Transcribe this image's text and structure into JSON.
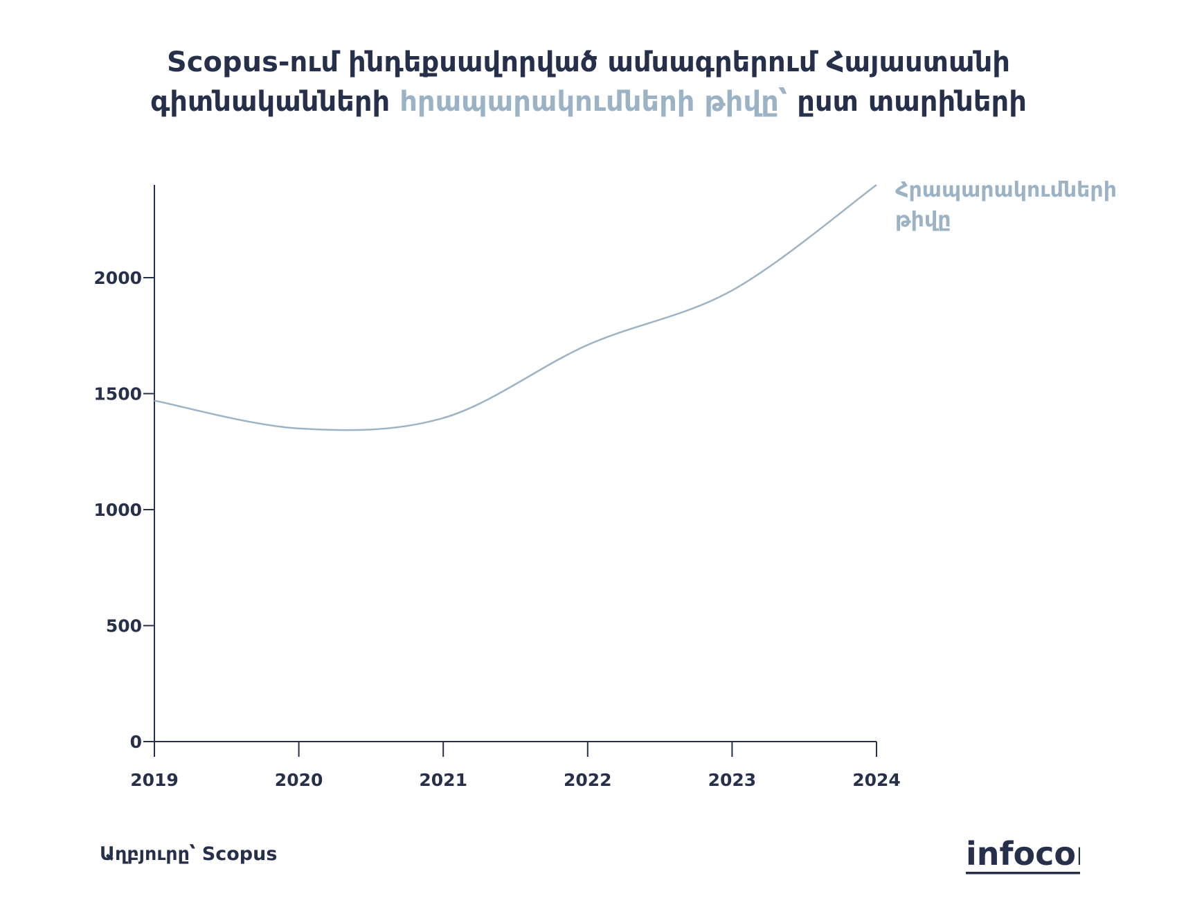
{
  "title": {
    "part1": "Scopus-ում ինդեքսավորված ամսագրերում Հայաստանի",
    "part2": "գիտնականների ",
    "highlight": "հրապարակումների թիվը՝",
    "part3": " ըստ տարիների"
  },
  "source": "Աղբյուրը՝ Scopus",
  "brand": "infocom",
  "colors": {
    "text": "#27304a",
    "series": "#9bb3c5"
  },
  "chart_data": {
    "type": "line",
    "x": [
      2019,
      2020,
      2021,
      2022,
      2023,
      2024
    ],
    "series": [
      {
        "name": "Հրապարակումների թիվը",
        "label_lines": [
          "Հրապարակումների",
          "թիվը"
        ],
        "values": [
          1470,
          1350,
          1395,
          1710,
          1945,
          2400
        ]
      }
    ],
    "ylim": [
      0,
      2400
    ],
    "yticks": [
      0,
      500,
      1000,
      1500,
      2000
    ],
    "xlim": [
      2019,
      2024
    ],
    "xticks": [
      2019,
      2020,
      2021,
      2022,
      2023,
      2024
    ],
    "grid": false,
    "legend": "right-end-label"
  }
}
